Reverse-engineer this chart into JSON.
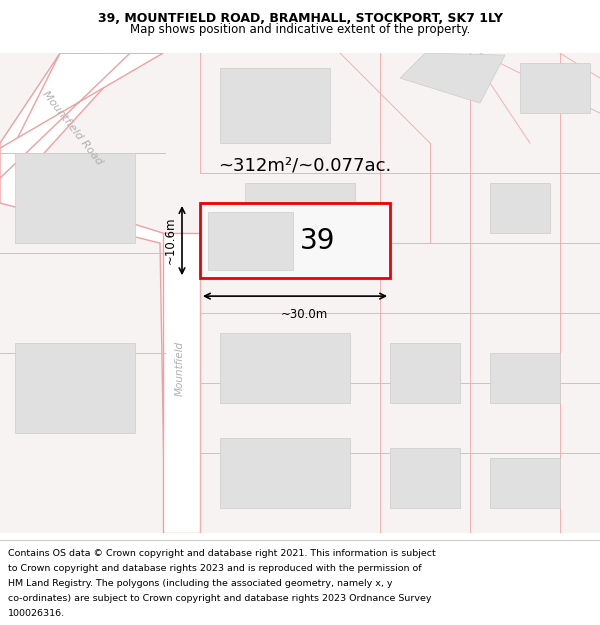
{
  "title_line1": "39, MOUNTFIELD ROAD, BRAMHALL, STOCKPORT, SK7 1LY",
  "title_line2": "Map shows position and indicative extent of the property.",
  "footer_lines": [
    "Contains OS data © Crown copyright and database right 2021. This information is subject",
    "to Crown copyright and database rights 2023 and is reproduced with the permission of",
    "HM Land Registry. The polygons (including the associated geometry, namely x, y",
    "co-ordinates) are subject to Crown copyright and database rights 2023 Ordnance Survey",
    "100026316."
  ],
  "map_bg": "#ffffff",
  "map_outer_bg": "#f5f0f0",
  "road_line_color": "#f0a0a0",
  "road_fill": "#ffffff",
  "building_fill": "#e0e0e0",
  "building_outline": "#cccccc",
  "prop_line_color": "#f5b0b0",
  "highlight_fill": "#f8f8f8",
  "highlight_outline": "#ee0000",
  "area_text": "~312m²/~0.077ac.",
  "label_number": "39",
  "dim_width": "~30.0m",
  "dim_height": "~10.6m",
  "road_label_diag": "Mountfield Road",
  "road_label_vert": "Mountfield",
  "title_fontsize": 9.0,
  "subtitle_fontsize": 8.5,
  "footer_fontsize": 6.8,
  "area_fontsize": 13,
  "number_fontsize": 20,
  "dim_fontsize": 8.5,
  "road_label_fontsize": 8.0
}
